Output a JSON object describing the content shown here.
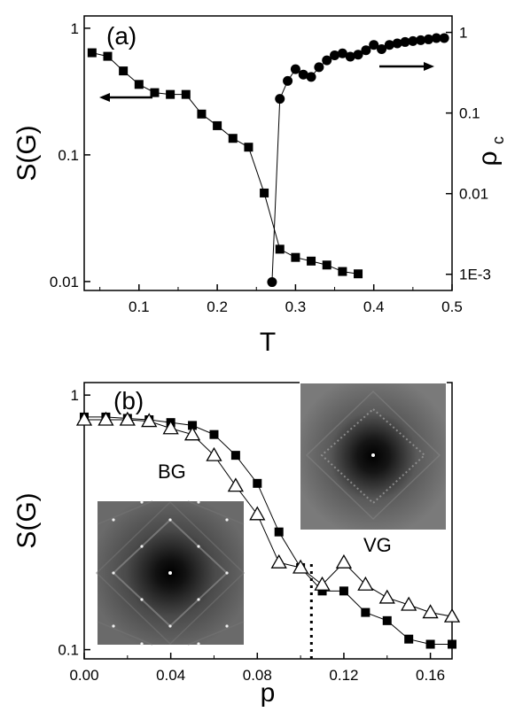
{
  "chart_data": [
    {
      "type": "scatter",
      "panel_label": "(a)",
      "xlabel": "T",
      "ylabel": "S(G)",
      "ylabel_right": "ρ",
      "ylabel_right_sub": "c",
      "xlim": [
        0.03,
        0.5
      ],
      "ylim": [
        0.0085,
        1.25
      ],
      "ylim_right": [
        0.00063,
        1.6
      ],
      "yscale": "log",
      "yscale_right": "log",
      "x_ticks": [
        "0.1",
        "0.2",
        "0.3",
        "0.4",
        "0.5"
      ],
      "y_ticks": [
        "0.01",
        "0.1",
        "1"
      ],
      "y_ticks_right": [
        "1E-3",
        "0.01",
        "0.1",
        "1"
      ],
      "grid": false,
      "series": [
        {
          "axis": "left",
          "marker": "filled-square",
          "x": [
            0.04,
            0.06,
            0.08,
            0.1,
            0.12,
            0.14,
            0.16,
            0.18,
            0.2,
            0.22,
            0.24,
            0.26,
            0.28,
            0.3,
            0.32,
            0.34,
            0.36,
            0.38
          ],
          "y": [
            0.64,
            0.6,
            0.46,
            0.36,
            0.31,
            0.3,
            0.3,
            0.21,
            0.17,
            0.135,
            0.115,
            0.05,
            0.018,
            0.0155,
            0.0145,
            0.0135,
            0.012,
            0.0115
          ]
        },
        {
          "axis": "right",
          "marker": "filled-circle",
          "x": [
            0.27,
            0.28,
            0.29,
            0.3,
            0.31,
            0.32,
            0.33,
            0.34,
            0.35,
            0.36,
            0.37,
            0.38,
            0.39,
            0.4,
            0.41,
            0.42,
            0.43,
            0.44,
            0.45,
            0.46,
            0.47,
            0.48,
            0.49
          ],
          "y": [
            0.0008,
            0.15,
            0.25,
            0.35,
            0.3,
            0.28,
            0.37,
            0.45,
            0.52,
            0.55,
            0.5,
            0.53,
            0.6,
            0.7,
            0.62,
            0.7,
            0.73,
            0.76,
            0.78,
            0.8,
            0.82,
            0.85,
            0.85
          ]
        }
      ]
    },
    {
      "type": "scatter",
      "panel_label": "(b)",
      "xlabel": "p",
      "ylabel": "S(G)",
      "xlim": [
        0.0,
        0.17
      ],
      "ylim": [
        0.092,
        1.12
      ],
      "yscale": "log",
      "x_ticks": [
        "0.00",
        "0.04",
        "0.08",
        "0.12",
        "0.16"
      ],
      "y_ticks": [
        "0.1",
        "1"
      ],
      "grid": false,
      "annotations": [
        "BG",
        "VG"
      ],
      "vline_x": 0.105,
      "series": [
        {
          "marker": "filled-square",
          "x": [
            0.0,
            0.01,
            0.02,
            0.03,
            0.04,
            0.05,
            0.06,
            0.07,
            0.08,
            0.09,
            0.1,
            0.11,
            0.12,
            0.13,
            0.14,
            0.15,
            0.16,
            0.17
          ],
          "y": [
            0.82,
            0.82,
            0.81,
            0.8,
            0.78,
            0.76,
            0.7,
            0.58,
            0.45,
            0.29,
            0.21,
            0.17,
            0.17,
            0.14,
            0.13,
            0.11,
            0.105,
            0.105
          ]
        },
        {
          "marker": "open-triangle",
          "x": [
            0.0,
            0.01,
            0.02,
            0.03,
            0.04,
            0.05,
            0.06,
            0.07,
            0.08,
            0.09,
            0.1,
            0.11,
            0.12,
            0.13,
            0.14,
            0.15,
            0.16,
            0.17
          ],
          "y": [
            0.8,
            0.8,
            0.8,
            0.79,
            0.74,
            0.7,
            0.58,
            0.44,
            0.34,
            0.22,
            0.21,
            0.18,
            0.22,
            0.18,
            0.16,
            0.15,
            0.14,
            0.135
          ]
        }
      ]
    }
  ]
}
